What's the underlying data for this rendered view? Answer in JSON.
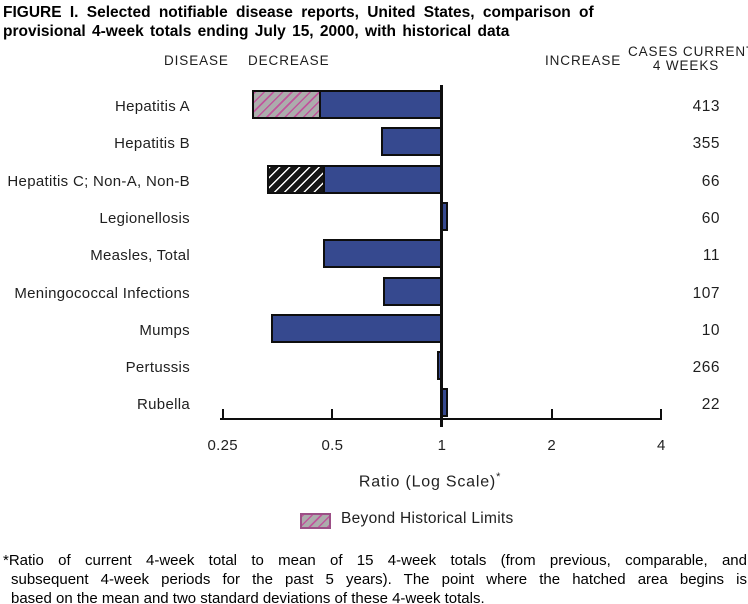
{
  "title": {
    "line1": "FIGURE I. Selected notifiable disease reports, United States, comparison of",
    "line2": "provisional 4-week totals ending July 15, 2000, with historical data"
  },
  "headers": {
    "disease": "DISEASE",
    "decrease": "DECREASE",
    "increase": "INCREASE",
    "cases_line1": "CASES CURRENT",
    "cases_line2": "4 WEEKS"
  },
  "chart_data": {
    "type": "bar",
    "orientation": "horizontal",
    "title": "FIGURE I. Selected notifiable disease reports, United States, comparison of provisional 4-week totals ending July 15, 2000, with historical data",
    "xlabel": "Ratio (Log Scale)",
    "xlabel_footnote_marker": "*",
    "x_scale": "log2",
    "xlim": [
      0.25,
      4
    ],
    "x_ticks": [
      0.25,
      0.5,
      1,
      2,
      4
    ],
    "x_tick_labels": [
      "0.25",
      "0.5",
      "1",
      "2",
      "4"
    ],
    "baseline_ratio": 1,
    "rows": [
      {
        "label": "Hepatitis A",
        "cases": 413,
        "ratio": 0.3,
        "beyond_limit_ratio": 0.46,
        "hatch": "pink-gray"
      },
      {
        "label": "Hepatitis B",
        "cases": 355,
        "ratio": 0.68,
        "beyond_limit_ratio": null,
        "hatch": null
      },
      {
        "label": "Hepatitis C; Non-A, Non-B",
        "cases": 66,
        "ratio": 0.33,
        "beyond_limit_ratio": 0.47,
        "hatch": "black-white"
      },
      {
        "label": "Legionellosis",
        "cases": 60,
        "ratio": 1.04,
        "beyond_limit_ratio": null,
        "hatch": null
      },
      {
        "label": "Measles, Total",
        "cases": 11,
        "ratio": 0.47,
        "beyond_limit_ratio": null,
        "hatch": null
      },
      {
        "label": "Meningococcal Infections",
        "cases": 107,
        "ratio": 0.69,
        "beyond_limit_ratio": null,
        "hatch": null
      },
      {
        "label": "Mumps",
        "cases": 10,
        "ratio": 0.34,
        "beyond_limit_ratio": null,
        "hatch": null
      },
      {
        "label": "Pertussis",
        "cases": 266,
        "ratio": 0.97,
        "beyond_limit_ratio": null,
        "hatch": null
      },
      {
        "label": "Rubella",
        "cases": 22,
        "ratio": 1.04,
        "beyond_limit_ratio": null,
        "hatch": null
      }
    ],
    "legend": {
      "label": "Beyond Historical Limits",
      "swatch": "pink-gray-hatch"
    },
    "grid": false,
    "legend_position": "bottom"
  },
  "footnote": {
    "lines": [
      "*Ratio of current 4-week total to mean of 15 4-week totals (from previous, comparable, and",
      "subsequent 4-week periods for the past 5 years). The point where the hatched area begins is",
      "based on the mean and two standard deviations of these 4-week totals."
    ]
  },
  "colors": {
    "bar_blue": "#36498F",
    "bar_border": "#0E0E0E",
    "hatch_gray_bg": "#ACACAC",
    "hatch_pink_stripe": "#C0559C",
    "hatch_black_bg": "#151515",
    "hatch_white_stripe": "#FFFFFF",
    "legend_border": "#9C4F86",
    "axis_color": "#0E0E0E"
  }
}
